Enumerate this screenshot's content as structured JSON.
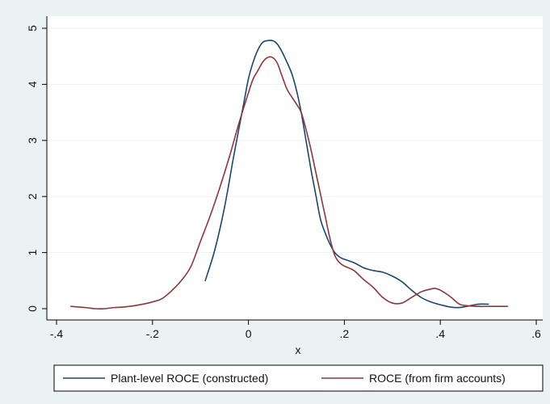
{
  "chart_data": {
    "type": "line",
    "title": "",
    "xlabel": "x",
    "ylabel": "",
    "xlim": [
      -0.4,
      0.6
    ],
    "ylim": [
      0,
      5
    ],
    "xticks": [
      -0.4,
      -0.2,
      0,
      0.2,
      0.4,
      0.6
    ],
    "xtick_labels": [
      "-.4",
      "-.2",
      "0",
      ".2",
      ".4",
      ".6"
    ],
    "yticks": [
      0,
      1,
      2,
      3,
      4,
      5
    ],
    "ytick_labels": [
      "0",
      "1",
      "2",
      "3",
      "4",
      "5"
    ],
    "grid": "horizontal",
    "legend_position": "bottom",
    "series": [
      {
        "name": "Plant-level ROCE (constructed)",
        "color": "#1a476f",
        "x": [
          -0.09,
          -0.07,
          -0.05,
          -0.03,
          -0.01,
          0.0,
          0.01,
          0.02,
          0.03,
          0.04,
          0.05,
          0.06,
          0.07,
          0.08,
          0.09,
          0.1,
          0.11,
          0.12,
          0.13,
          0.14,
          0.15,
          0.16,
          0.17,
          0.18,
          0.19,
          0.2,
          0.22,
          0.24,
          0.26,
          0.28,
          0.3,
          0.32,
          0.34,
          0.36,
          0.38,
          0.4,
          0.42,
          0.44,
          0.46,
          0.48,
          0.5
        ],
        "y": [
          0.5,
          1.05,
          1.8,
          2.75,
          3.65,
          4.1,
          4.4,
          4.62,
          4.75,
          4.78,
          4.78,
          4.72,
          4.58,
          4.4,
          4.2,
          3.9,
          3.5,
          3.0,
          2.5,
          2.05,
          1.6,
          1.35,
          1.15,
          1.0,
          0.92,
          0.88,
          0.82,
          0.73,
          0.68,
          0.65,
          0.58,
          0.48,
          0.33,
          0.2,
          0.12,
          0.07,
          0.03,
          0.02,
          0.05,
          0.08,
          0.08
        ]
      },
      {
        "name": "ROCE (from firm accounts)",
        "color": "#90353b",
        "x": [
          -0.37,
          -0.34,
          -0.32,
          -0.3,
          -0.28,
          -0.26,
          -0.24,
          -0.22,
          -0.2,
          -0.18,
          -0.16,
          -0.14,
          -0.12,
          -0.1,
          -0.08,
          -0.06,
          -0.04,
          -0.02,
          0.0,
          0.01,
          0.02,
          0.03,
          0.04,
          0.05,
          0.06,
          0.07,
          0.08,
          0.09,
          0.1,
          0.11,
          0.12,
          0.13,
          0.14,
          0.15,
          0.16,
          0.17,
          0.18,
          0.19,
          0.2,
          0.22,
          0.24,
          0.26,
          0.28,
          0.3,
          0.32,
          0.34,
          0.36,
          0.38,
          0.39,
          0.4,
          0.42,
          0.44,
          0.46,
          0.48,
          0.5,
          0.52,
          0.54
        ],
        "y": [
          0.04,
          0.02,
          0.0,
          0.0,
          0.02,
          0.03,
          0.05,
          0.08,
          0.12,
          0.18,
          0.32,
          0.5,
          0.75,
          1.2,
          1.65,
          2.15,
          2.7,
          3.3,
          3.85,
          4.1,
          4.25,
          4.4,
          4.48,
          4.48,
          4.38,
          4.15,
          3.92,
          3.78,
          3.65,
          3.5,
          3.2,
          2.85,
          2.45,
          2.05,
          1.65,
          1.25,
          0.95,
          0.82,
          0.76,
          0.68,
          0.52,
          0.38,
          0.2,
          0.1,
          0.1,
          0.2,
          0.3,
          0.35,
          0.36,
          0.33,
          0.22,
          0.08,
          0.05,
          0.04,
          0.04,
          0.04,
          0.04
        ]
      }
    ]
  }
}
